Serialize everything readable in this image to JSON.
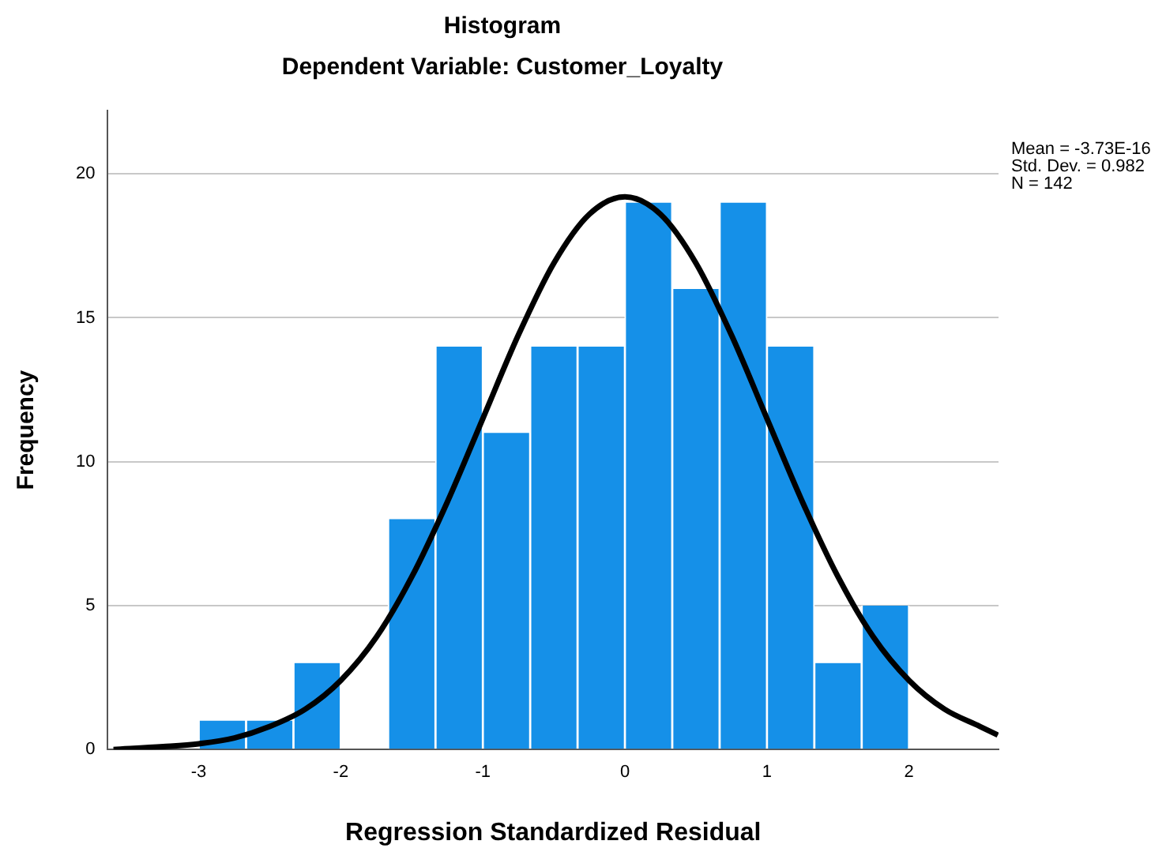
{
  "chart_data": {
    "type": "histogram",
    "title": "Histogram",
    "subtitle": "Dependent Variable: Customer_Loyalty",
    "xlabel": "Regression Standardized Residual",
    "ylabel": "Frequency",
    "annotations": [
      "Mean = -3.73E-16",
      "Std. Dev. = 0.982",
      "N = 142"
    ],
    "series": [
      {
        "color": "#1590e8",
        "bins": [
          -3,
          -2.667,
          -2.333,
          -2,
          -1.667,
          -1.333,
          -1,
          -0.667,
          -0.333,
          0,
          0.333,
          0.667,
          1,
          1.333,
          1.667,
          2
        ],
        "values": [
          1,
          1,
          3,
          0,
          8,
          14,
          11,
          14,
          14,
          19,
          16,
          19,
          14,
          3,
          5
        ]
      },
      {
        "type": "line",
        "color": "#000000",
        "x": [
          -3.6,
          -3.25,
          -3,
          -2.75,
          -2.5,
          -2.25,
          -2,
          -1.75,
          -1.5,
          -1.25,
          -1,
          -0.75,
          -0.5,
          -0.25,
          0,
          0.25,
          0.5,
          0.75,
          1,
          1.25,
          1.5,
          1.75,
          2,
          2.25,
          2.5,
          2.625
        ],
        "values": [
          0,
          0.1,
          0.2,
          0.4,
          0.8,
          1.4,
          2.4,
          3.9,
          6,
          8.6,
          11.5,
          14.4,
          16.9,
          18.6,
          19.2,
          18.6,
          16.9,
          14.4,
          11.5,
          8.6,
          6,
          3.9,
          2.4,
          1.4,
          0.8,
          0.5
        ]
      }
    ],
    "xlim": [
      -3.64,
      2.63
    ],
    "xticks": [
      -3,
      -2,
      -1,
      0,
      1,
      2
    ],
    "ylim": [
      0,
      22.2
    ],
    "yticks": [
      0,
      5,
      10,
      15,
      20
    ],
    "grid": "y",
    "legend": false
  }
}
